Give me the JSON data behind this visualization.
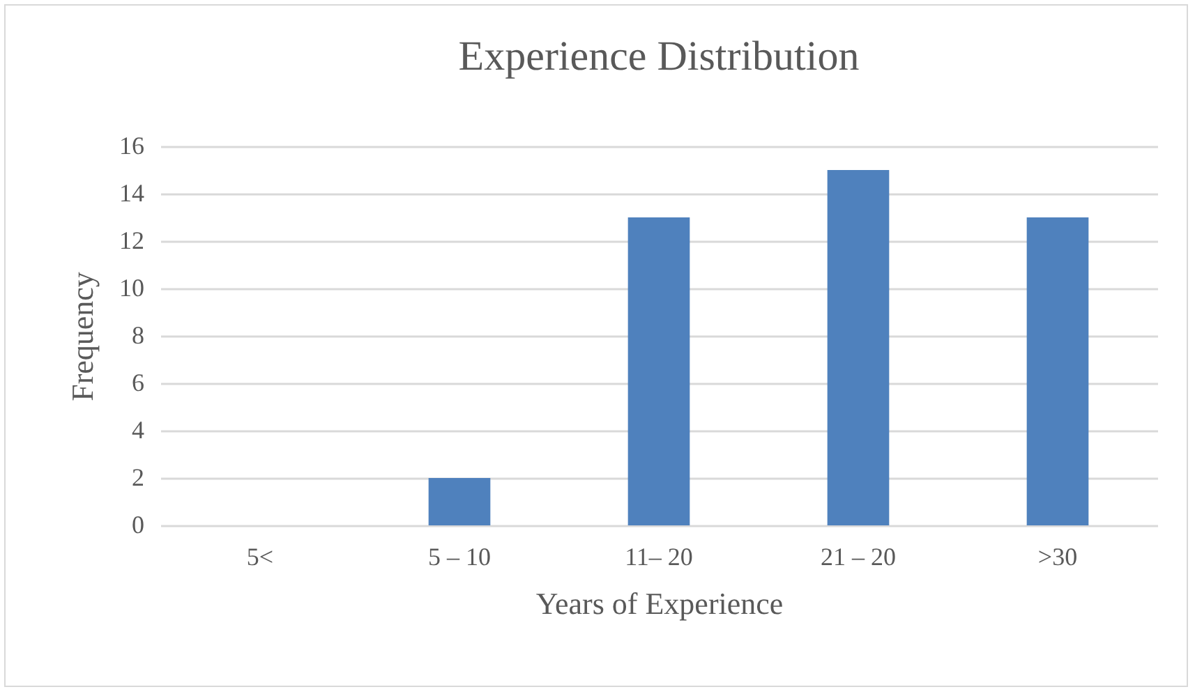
{
  "chart_data": {
    "type": "bar",
    "title": "Experience Distribution",
    "xlabel": "Years of Experience",
    "ylabel": "Frequency",
    "categories": [
      "5<",
      "5 – 10",
      "11– 20",
      "21 – 20",
      ">30"
    ],
    "values": [
      0,
      2,
      13,
      15,
      13
    ],
    "color": "#4f81bd",
    "ylim": [
      0,
      16
    ],
    "yticks": [
      0,
      2,
      4,
      6,
      8,
      10,
      12,
      14,
      16
    ],
    "grid": "y"
  }
}
